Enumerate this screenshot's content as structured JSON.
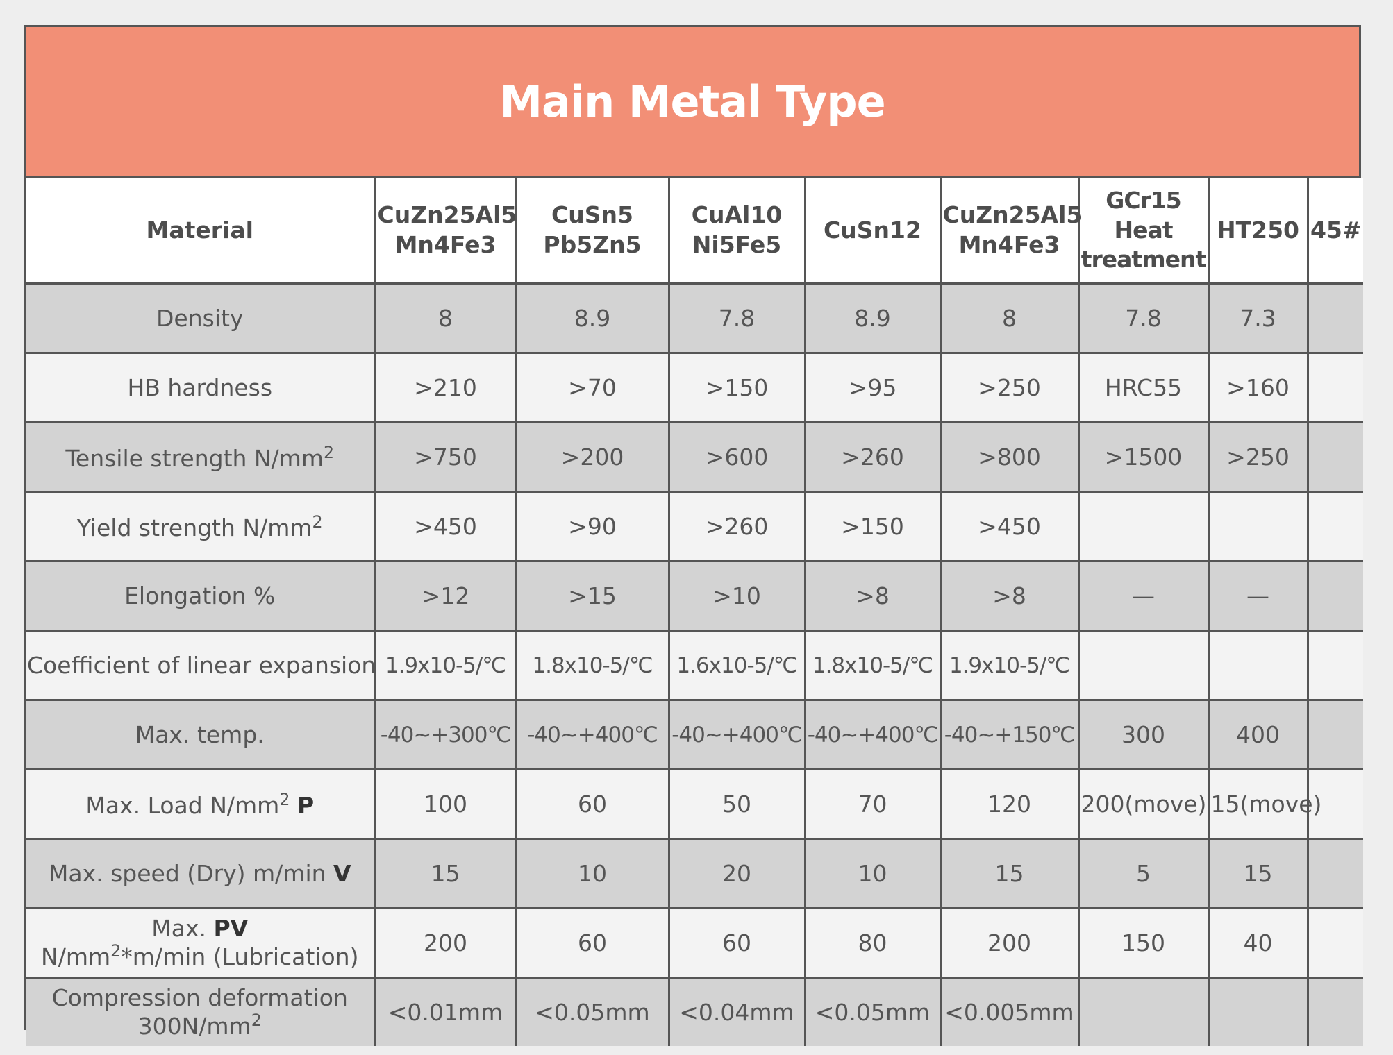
{
  "title": "Main Metal Type",
  "header": {
    "material": "Material",
    "columns": [
      "CuZn25Al5 Mn4Fe3",
      "CuSn5 Pb5Zn5",
      "CuAl10 Ni5Fe5",
      "CuSn12",
      "CuZn25Al5 Mn4Fe3",
      "GCr15 Heat treatment",
      "HT250",
      "45#"
    ]
  },
  "rows": [
    {
      "label": "Density",
      "values": [
        "8",
        "8.9",
        "7.8",
        "8.9",
        "8",
        "7.8",
        "7.3",
        ""
      ]
    },
    {
      "label": "HB hardness",
      "values": [
        ">210",
        ">70",
        ">150",
        ">95",
        ">250",
        "HRC55",
        ">160",
        ""
      ]
    },
    {
      "label": "Tensile strength N/mm",
      "label_sup": "2",
      "values": [
        ">750",
        ">200",
        ">600",
        ">260",
        ">800",
        ">1500",
        ">250",
        ""
      ]
    },
    {
      "label": "Yield strength N/mm",
      "label_sup": "2",
      "values": [
        ">450",
        ">90",
        ">260",
        ">150",
        ">450",
        "",
        "",
        ""
      ]
    },
    {
      "label": "Elongation %",
      "values": [
        ">12",
        ">15",
        ">10",
        ">8",
        ">8",
        "—",
        "—",
        ""
      ]
    },
    {
      "label": "Coefficient of linear expansion",
      "values": [
        "1.9x10-5/℃",
        "1.8x10-5/℃",
        "1.6x10-5/℃",
        "1.8x10-5/℃",
        "1.9x10-5/℃",
        "",
        "",
        ""
      ]
    },
    {
      "label": "Max. temp.",
      "values": [
        "-40~+300℃",
        "-40~+400℃",
        "-40~+400℃",
        "-40~+400℃",
        "-40~+150℃",
        "300",
        "400",
        ""
      ]
    },
    {
      "label": "Max. Load  N/mm",
      "label_sup": "2",
      "label_bold": "P",
      "values": [
        "100",
        "60",
        "50",
        "70",
        "120",
        "200(move)",
        "15(move)",
        ""
      ]
    },
    {
      "label": "Max. speed (Dry) m/min",
      "label_bold": "V",
      "values": [
        "15",
        "10",
        "20",
        "10",
        "15",
        "5",
        "15",
        ""
      ]
    },
    {
      "label": "Max.",
      "label_bold": "PV",
      "label_line2": "N/mm",
      "label_line2_sup": "2",
      "label_line2_after": "*m/min (Lubrication)",
      "values": [
        "200",
        "60",
        "60",
        "80",
        "200",
        "150",
        "40",
        ""
      ]
    },
    {
      "label": "Compression deformation",
      "label_line2": "300N/mm",
      "label_line2_sup": "2",
      "values": [
        "<0.01mm",
        "<0.05mm",
        "<0.04mm",
        "<0.05mm",
        "<0.005mm",
        "",
        "",
        ""
      ]
    }
  ]
}
